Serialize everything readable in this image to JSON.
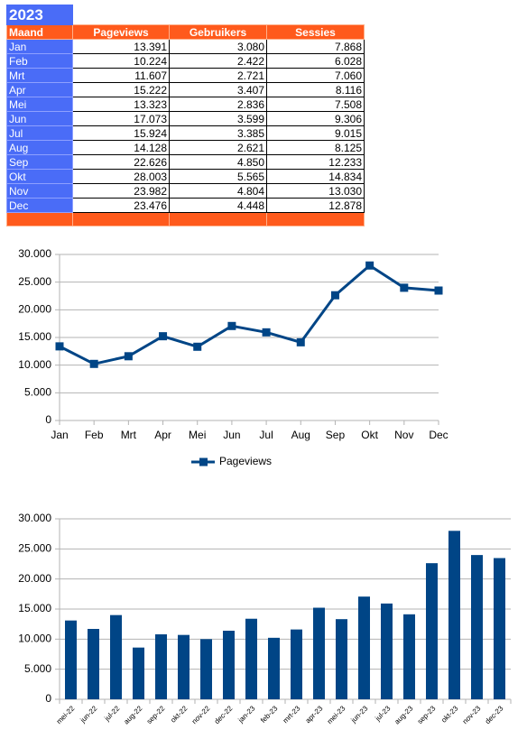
{
  "table": {
    "title": "2023",
    "headers": [
      "Maand",
      "Pageviews",
      "Gebruikers",
      "Sessies"
    ],
    "rows": [
      [
        "Jan",
        "13.391",
        "3.080",
        "7.868"
      ],
      [
        "Feb",
        "10.224",
        "2.422",
        "6.028"
      ],
      [
        "Mrt",
        "11.607",
        "2.721",
        "7.060"
      ],
      [
        "Apr",
        "15.222",
        "3.407",
        "8.116"
      ],
      [
        "Mei",
        "13.323",
        "2.836",
        "7.508"
      ],
      [
        "Jun",
        "17.073",
        "3.599",
        "9.306"
      ],
      [
        "Jul",
        "15.924",
        "3.385",
        "9.015"
      ],
      [
        "Aug",
        "14.128",
        "2.621",
        "8.125"
      ],
      [
        "Sep",
        "22.626",
        "4.850",
        "12.233"
      ],
      [
        "Okt",
        "28.003",
        "5.565",
        "14.834"
      ],
      [
        "Nov",
        "23.982",
        "4.804",
        "13.030"
      ],
      [
        "Dec",
        "23.476",
        "4.448",
        "12.878"
      ]
    ]
  },
  "chart_data": [
    {
      "type": "line",
      "categories": [
        "Jan",
        "Feb",
        "Mrt",
        "Apr",
        "Mei",
        "Jun",
        "Jul",
        "Aug",
        "Sep",
        "Okt",
        "Nov",
        "Dec"
      ],
      "series": [
        {
          "name": "Pageviews",
          "color": "#004586",
          "values": [
            13391,
            10224,
            11607,
            15222,
            13323,
            17073,
            15924,
            14128,
            22626,
            28003,
            23982,
            23476
          ]
        }
      ],
      "ylim": [
        0,
        30000
      ],
      "yticks": [
        0,
        {
          "value": 5000,
          "label": "5.000"
        },
        {
          "value": 10000,
          "label": "10.000"
        },
        {
          "value": 15000,
          "label": "15.000"
        },
        {
          "value": 20000,
          "label": "20.000"
        },
        {
          "value": 25000,
          "label": "25.000"
        },
        {
          "value": 30000,
          "label": "30.000"
        }
      ],
      "grid": true,
      "legend": "bottom"
    },
    {
      "type": "bar",
      "categories": [
        "mei-22",
        "jun-22",
        "jul-22",
        "aug-22",
        "sep-22",
        "okt-22",
        "nov-22",
        "dec-22",
        "jan-23",
        "feb-23",
        "mrt-23",
        "apr-23",
        "mei-23",
        "jun-23",
        "jul-23",
        "aug-23",
        "sep-23",
        "okt-23",
        "nov-23",
        "dec-23"
      ],
      "values": [
        13100,
        11700,
        14000,
        8600,
        10800,
        10700,
        10000,
        11400,
        13391,
        10224,
        11607,
        15222,
        13323,
        17073,
        15924,
        14128,
        22626,
        28003,
        23982,
        23476
      ],
      "color": "#004586",
      "ylim": [
        0,
        30000
      ],
      "yticks": [
        0,
        {
          "value": 5000,
          "label": "5.000"
        },
        {
          "value": 10000,
          "label": "10.000"
        },
        {
          "value": 15000,
          "label": "15.000"
        },
        {
          "value": 20000,
          "label": "20.000"
        },
        {
          "value": 25000,
          "label": "25.000"
        },
        {
          "value": 30000,
          "label": "30.000"
        }
      ],
      "grid": true
    }
  ]
}
